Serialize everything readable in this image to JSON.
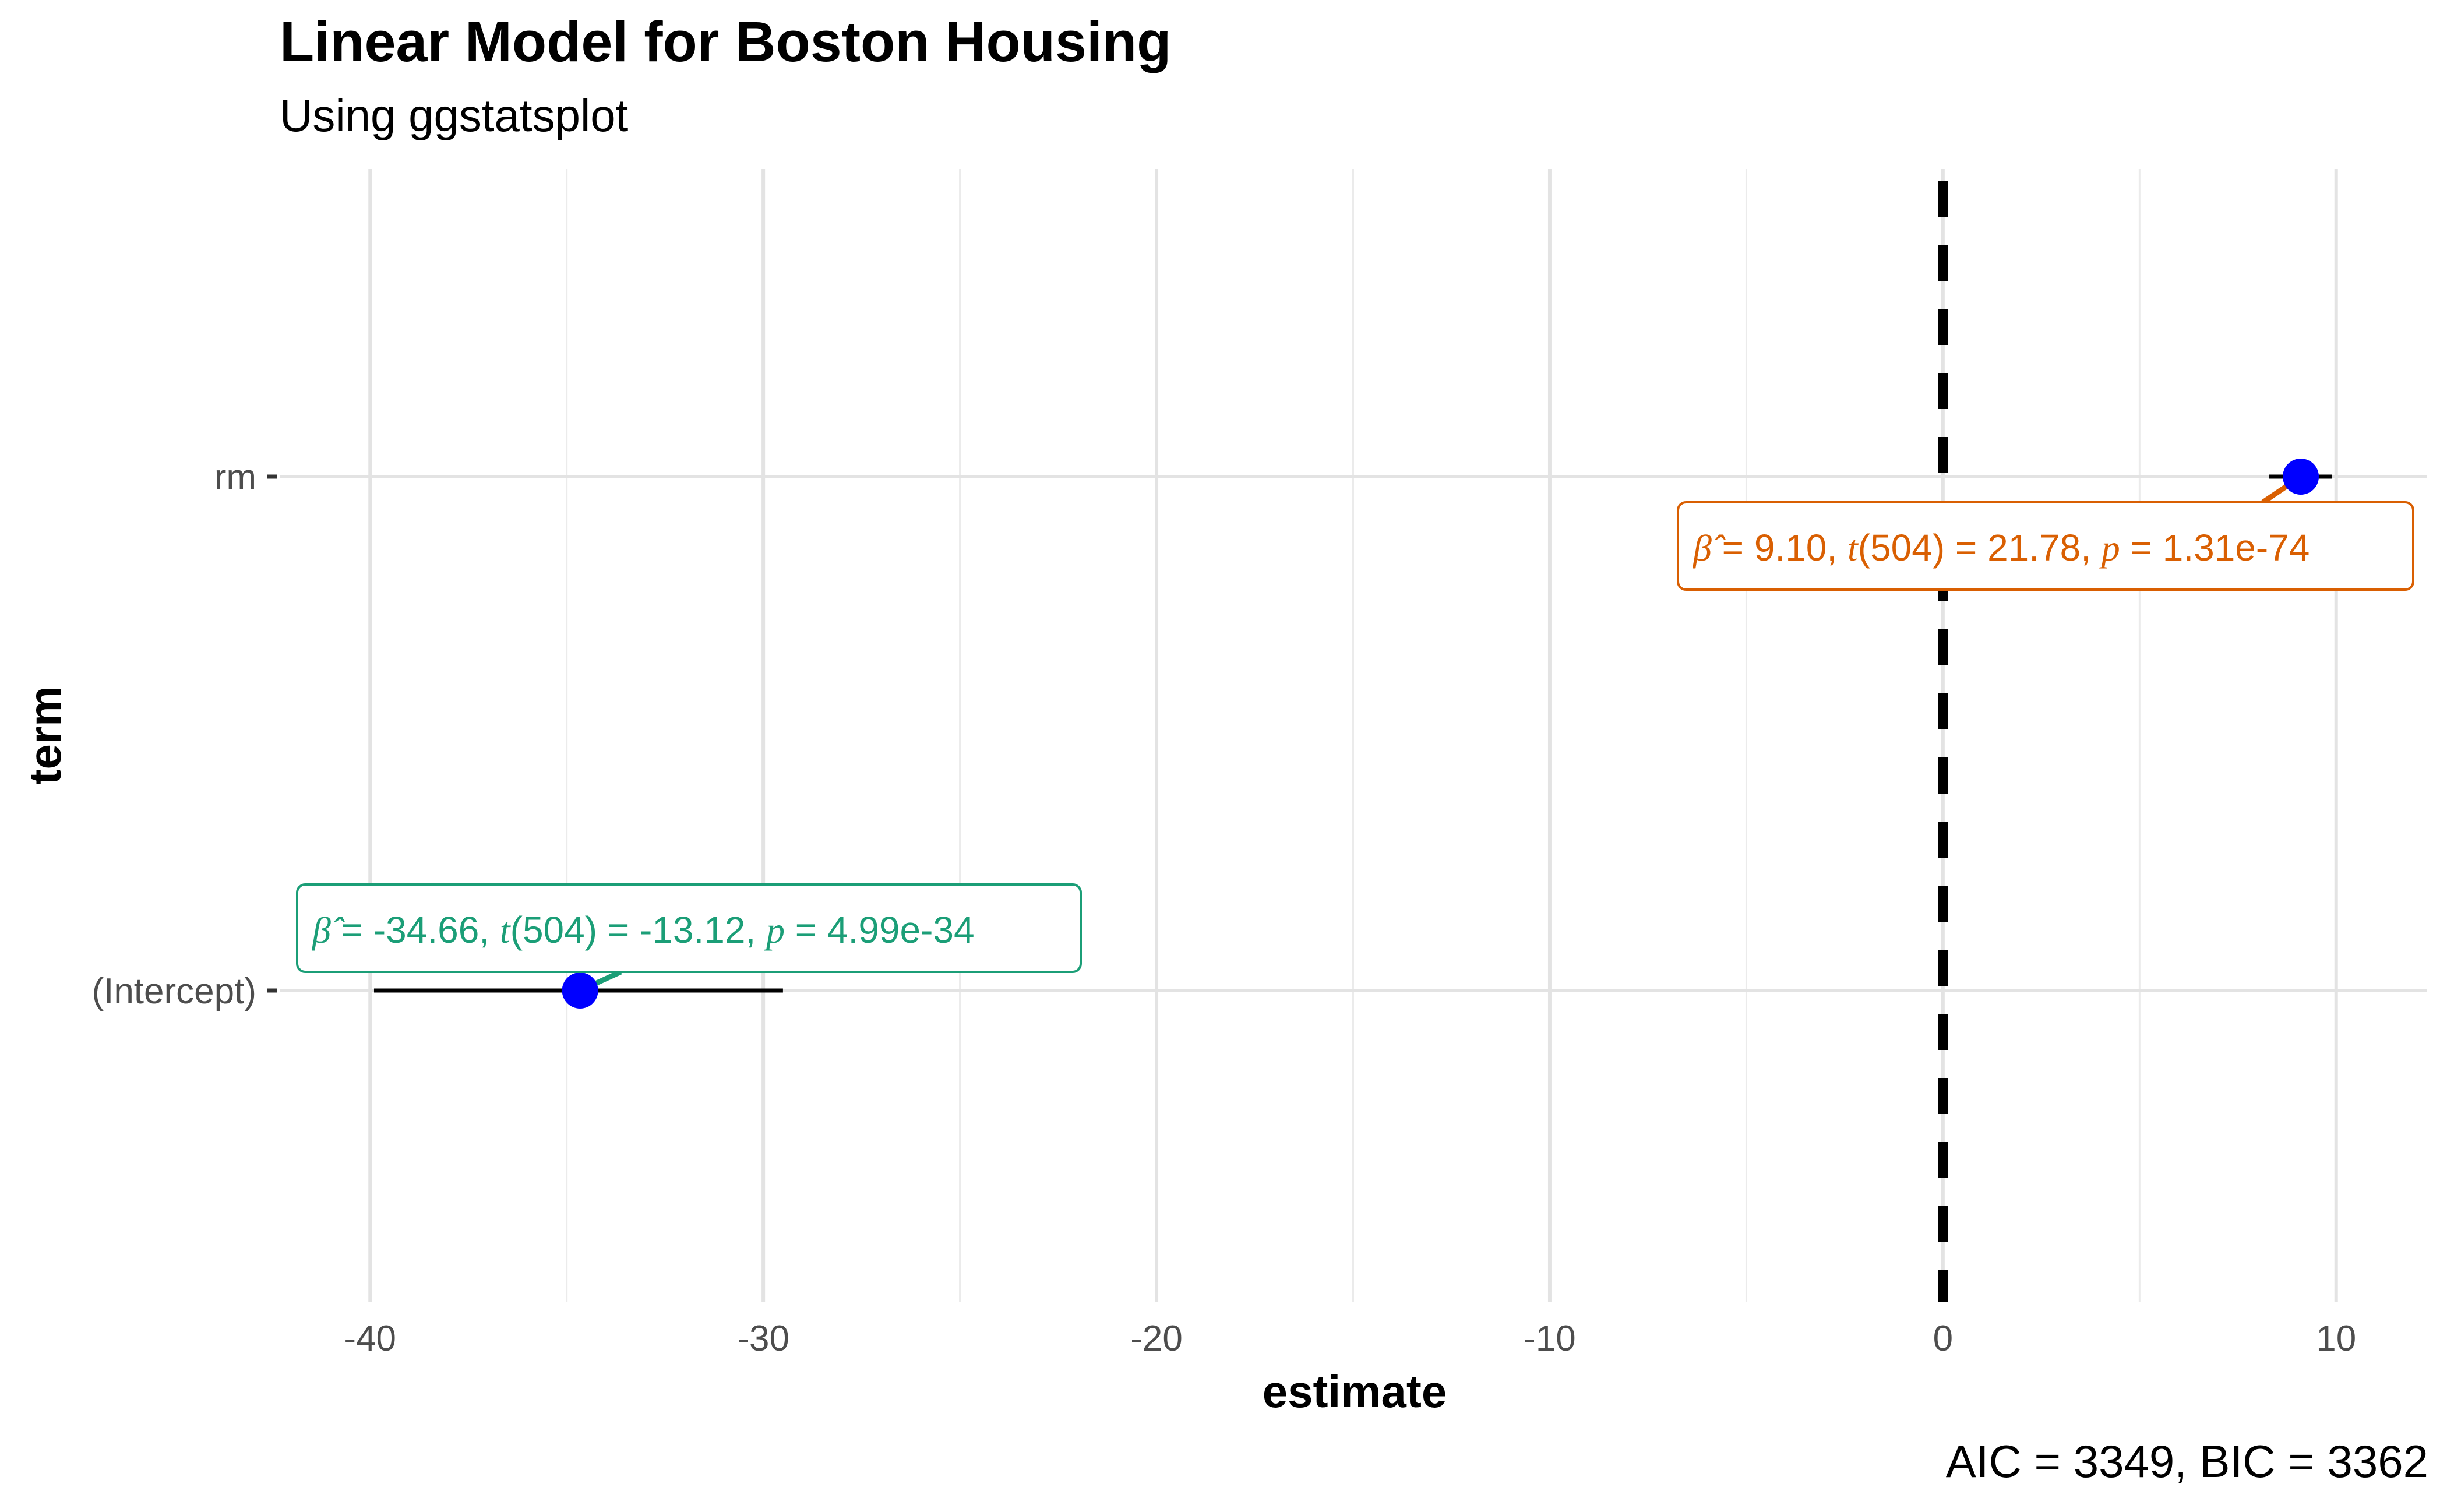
{
  "chart_data": {
    "type": "scatter",
    "title": "Linear Model for Boston Housing",
    "subtitle": "Using ggstatsplot",
    "xlabel": "estimate",
    "ylabel": "term",
    "caption": "AIC = 3349, BIC = 3362",
    "xlim": [
      -42.3,
      12.3
    ],
    "x_ticks": [
      -40,
      -30,
      -20,
      -10,
      0,
      10
    ],
    "x_tick_labels": [
      "-40",
      "-30",
      "-20",
      "-10",
      "0",
      "10"
    ],
    "categories": [
      "(Intercept)",
      "rm"
    ],
    "reference_line": {
      "x": 0,
      "style": "dashed"
    },
    "grid": true,
    "series": [
      {
        "values": [
          -34.66,
          9.1
        ],
        "ci_low": [
          -39.9,
          8.3
        ],
        "ci_high": [
          -29.5,
          9.9
        ]
      }
    ],
    "annotations": [
      {
        "term": "(Intercept)",
        "beta": "-34.66",
        "df": "504",
        "t": "-13.12",
        "p": "4.99e-34",
        "color": "#1b9e77"
      },
      {
        "term": "rm",
        "beta": "9.10",
        "df": "504",
        "t": "21.78",
        "p": "1.31e-74",
        "color": "#d95f02"
      }
    ],
    "point_color": "#0000ff"
  }
}
